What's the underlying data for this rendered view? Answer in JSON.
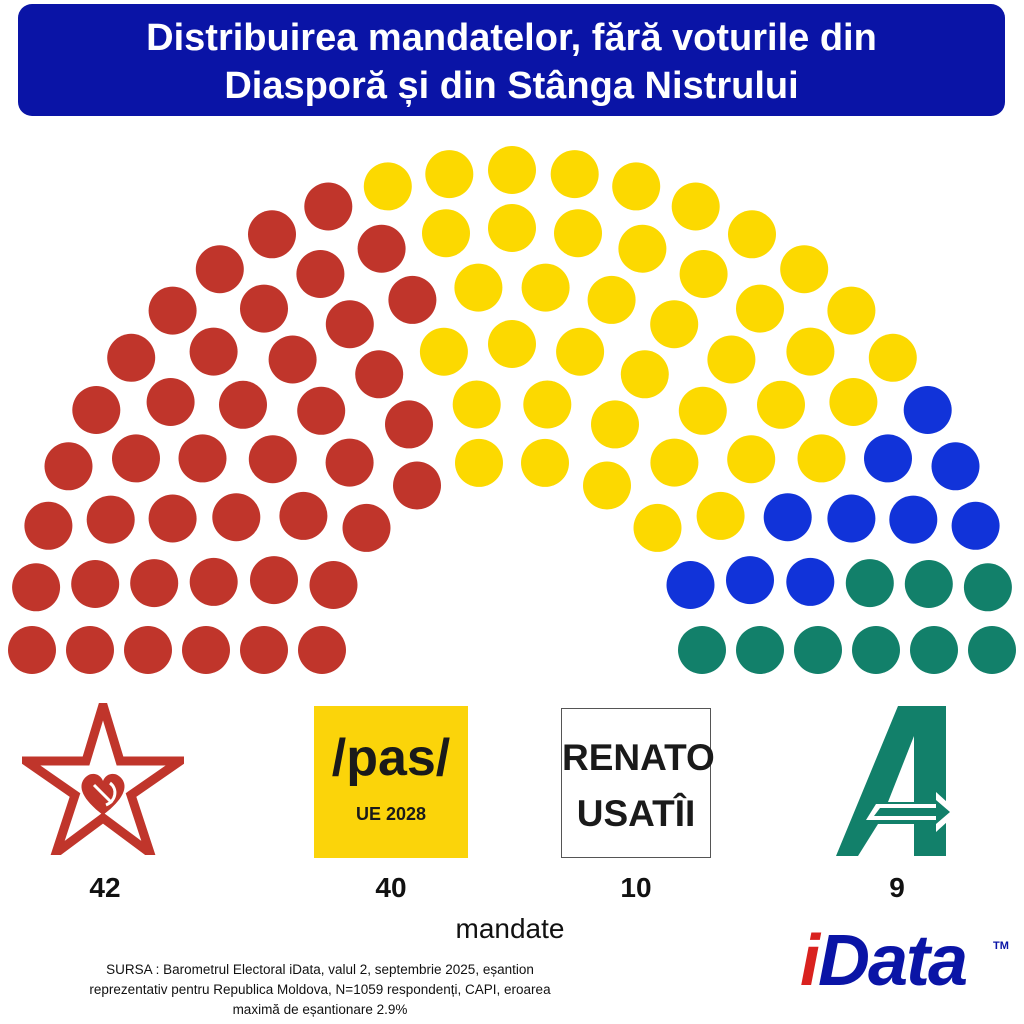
{
  "title": {
    "line1": "Distribuirea mandatelor, fără voturile din",
    "line2": "Diasporă și din Stânga Nistrului"
  },
  "chart_data": {
    "type": "parliament",
    "title": "Distribuirea mandatelor, fără voturile din Diasporă și din Stânga Nistrului",
    "unit": "mandate",
    "total_seats": 101,
    "series": [
      {
        "party_logo": "PSRM / Blocul Patriotic star",
        "seats": 42,
        "color": "#c0352b"
      },
      {
        "party_logo": "/pas/ UE 2028",
        "seats": 40,
        "color": "#fcd900"
      },
      {
        "party_logo": "RENATO USATÎI",
        "seats": 10,
        "color": "#1133d9"
      },
      {
        "party_logo": "Alternativa A",
        "seats": 9,
        "color": "#12806a"
      }
    ]
  },
  "logos": {
    "psrm": {
      "icon": "red-star-hammer-sickle-heart-icon",
      "color": "#c0352b"
    },
    "pas": {
      "main": "/pas/",
      "sub": "UE 2028",
      "background": "#fbd40a"
    },
    "renato": {
      "line1": "RENATO",
      "line2": "USATÎI"
    },
    "alternativa": {
      "icon": "green-a-arrow-icon",
      "color": "#12806a"
    }
  },
  "seat_labels": {
    "psrm": "42",
    "pas": "40",
    "renato": "10",
    "alternativa": "9"
  },
  "unit_label": "mandate",
  "source": {
    "line1": "SURSA : Barometrul Electoral iData, valul 2, septembrie 2025, eșantion",
    "line2": "reprezentativ pentru Republica Moldova, N=1059 respondenți, CAPI, eroarea",
    "line3": "maximă de eșantionare 2.9%"
  },
  "brand": {
    "i": "i",
    "rest": "Data",
    "tm": "TM"
  }
}
